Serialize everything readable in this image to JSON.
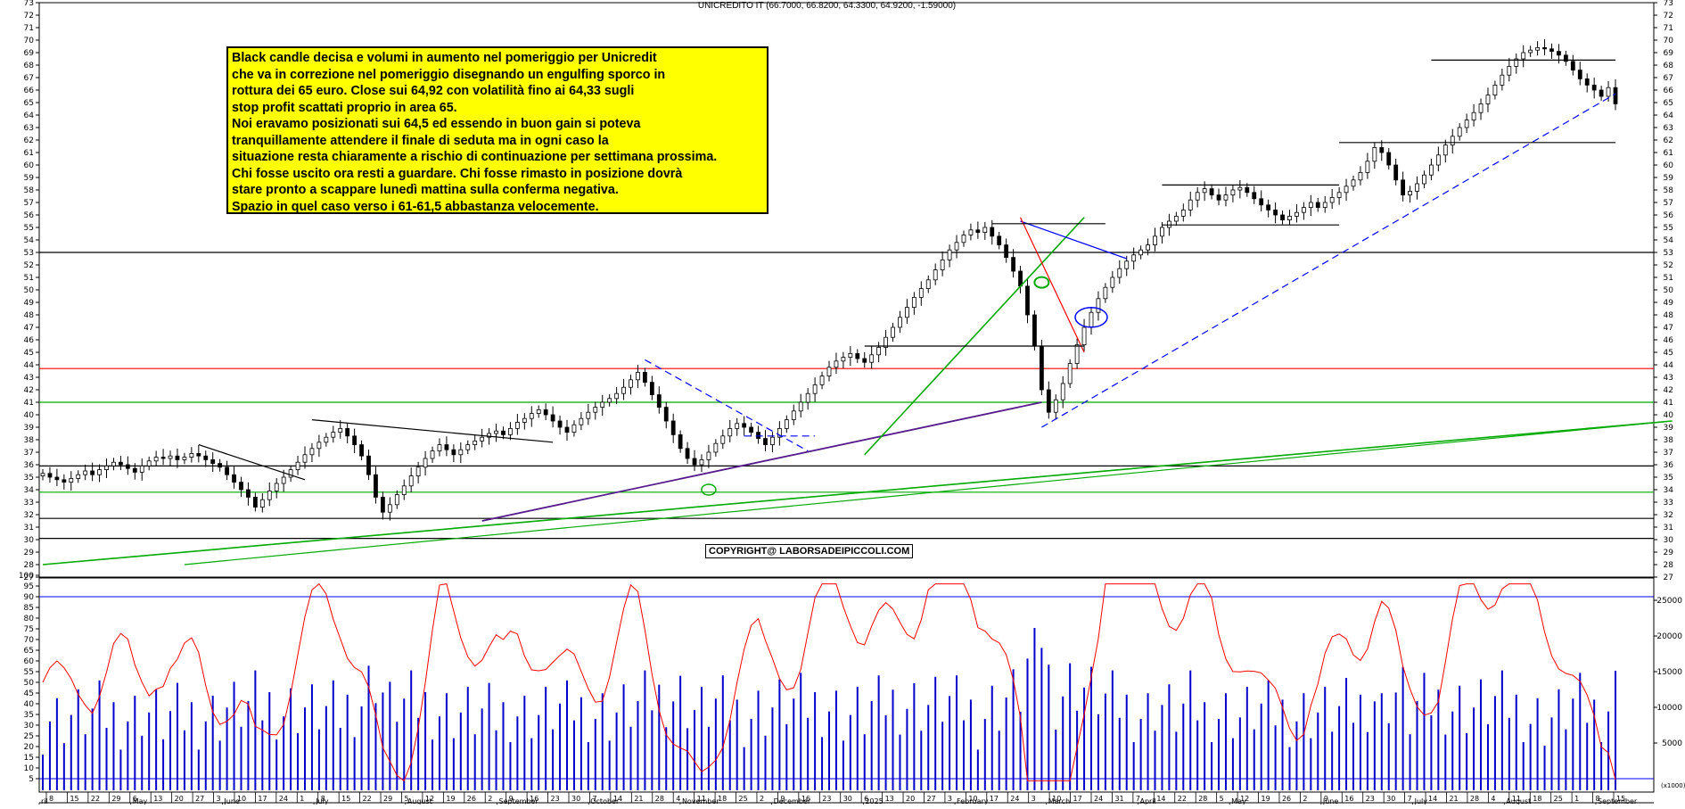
{
  "chart_data": {
    "type": "candlestick",
    "title": "UNICREDITO IT (66.7000, 66.8200, 64.3300, 64.9200, -1.59000)",
    "annotation": [
      "Black candle decisa e volumi in aumento nel pomeriggio per Unicredit",
      "che va in correzione nel pomeriggio disegnando un engulfing sporco in",
      "rottura dei 65 euro. Close sui 64,92 con volatilità fino ai 64,33 sugli",
      "stop profit scattati proprio in area 65.",
      "Noi eravamo posizionati sui 64,5 ed essendo in buon gain si poteva",
      "tranquillamente attendere il finale di seduta ma in ogni caso la",
      "situazione resta chiaramente a rischio di continuazione per settimana prossima.",
      "Chi fosse uscito ora resti a guardare. Chi fosse rimasto in posizione dovrà",
      "stare pronto a scappare lunedì mattina sulla conferma negativa.",
      "Spazio in quel caso verso i 61-61,5 abbastanza velocemente."
    ],
    "copyright": "COPYRIGHT@ LABORSADEIPICCOLI.COM",
    "price_axis": {
      "ylim": [
        27,
        73
      ],
      "ticks": [
        27,
        28,
        29,
        30,
        31,
        32,
        33,
        34,
        35,
        36,
        37,
        38,
        39,
        40,
        41,
        42,
        43,
        44,
        45,
        46,
        47,
        48,
        49,
        50,
        51,
        52,
        53,
        54,
        55,
        56,
        57,
        58,
        59,
        60,
        61,
        62,
        63,
        64,
        65,
        66,
        67,
        68,
        69,
        70,
        71,
        72,
        73
      ]
    },
    "oscillator_axis": {
      "ylim": [
        0,
        100
      ],
      "ticks": [
        5,
        10,
        15,
        20,
        25,
        30,
        35,
        40,
        45,
        50,
        55,
        60,
        65,
        70,
        75,
        80,
        85,
        90,
        95,
        100
      ]
    },
    "volume_axis": {
      "ticks": [
        5000,
        10000,
        15000,
        20000,
        25000
      ],
      "unit": "x1000"
    },
    "x_axis": {
      "day_ticks": [
        "8",
        "15",
        "22",
        "29",
        "6",
        "13",
        "20",
        "27",
        "3",
        "10",
        "17",
        "24",
        "1",
        "8",
        "15",
        "22",
        "29",
        "5",
        "12",
        "19",
        "26",
        "2",
        "9",
        "16",
        "23",
        "30",
        "7",
        "14",
        "21",
        "28",
        "4",
        "11",
        "18",
        "25",
        "2",
        "9",
        "16",
        "23",
        "30",
        "6",
        "13",
        "20",
        "27",
        "3",
        "10",
        "17",
        "24",
        "3",
        "10",
        "17",
        "24",
        "31",
        "7",
        "14",
        "22",
        "28",
        "5",
        "12",
        "19",
        "26",
        "2",
        "9",
        "16",
        "23",
        "30",
        "7",
        "14",
        "21",
        "28",
        "4",
        "11",
        "18",
        "25",
        "1",
        "8",
        "15"
      ],
      "months": [
        "ril",
        "May",
        "June",
        "July",
        "August",
        "September",
        "October",
        "November",
        "December",
        "2025",
        "February",
        "March",
        "April",
        "May",
        "June",
        "July",
        "August",
        "September"
      ]
    },
    "horizontal_levels": [
      {
        "value": 43.7,
        "color": "#ff0000"
      },
      {
        "value": 41.0,
        "color": "#00aa00"
      },
      {
        "value": 33.8,
        "color": "#00aa00"
      },
      {
        "value": 35.9,
        "color": "#000000"
      },
      {
        "value": 31.7,
        "color": "#000000"
      },
      {
        "value": 30.1,
        "color": "#000000"
      },
      {
        "value": 53.0,
        "color": "#000000"
      }
    ],
    "oscillator_levels": [
      90,
      5
    ],
    "closes": [
      35.3,
      35.0,
      34.8,
      34.6,
      34.9,
      35.2,
      35.5,
      35.2,
      35.6,
      35.9,
      36.2,
      36.0,
      35.7,
      35.4,
      35.9,
      36.3,
      36.6,
      36.5,
      36.7,
      36.4,
      36.6,
      36.9,
      36.7,
      36.4,
      36.1,
      35.8,
      35.2,
      34.6,
      34.0,
      33.4,
      32.6,
      33.2,
      33.9,
      34.5,
      35.0,
      35.6,
      36.2,
      36.8,
      37.3,
      37.8,
      38.2,
      38.6,
      38.9,
      38.3,
      37.6,
      36.7,
      35.2,
      33.4,
      32.2,
      32.8,
      33.6,
      34.3,
      35.1,
      35.8,
      36.5,
      37.1,
      37.6,
      37.2,
      36.8,
      37.2,
      37.6,
      37.9,
      38.2,
      38.5,
      38.7,
      38.4,
      38.9,
      39.4,
      39.7,
      40.1,
      40.4,
      40.0,
      39.5,
      39.0,
      38.6,
      39.2,
      39.7,
      40.2,
      40.6,
      41.0,
      41.3,
      41.7,
      42.2,
      42.8,
      43.4,
      42.6,
      41.6,
      40.6,
      39.5,
      38.4,
      37.3,
      36.5,
      36.0,
      36.4,
      37.0,
      37.7,
      38.3,
      38.9,
      39.3,
      39.0,
      38.6,
      38.1,
      37.6,
      38.2,
      38.9,
      39.6,
      40.3,
      41.0,
      41.7,
      42.4,
      43.1,
      43.8,
      44.3,
      44.6,
      44.9,
      44.5,
      44.2,
      44.8,
      45.4,
      46.2,
      47.0,
      47.8,
      48.6,
      49.4,
      50.1,
      50.8,
      51.6,
      52.4,
      53.2,
      53.8,
      54.4,
      54.8,
      54.6,
      55.0,
      54.3,
      53.6,
      52.6,
      51.5,
      50.3,
      48.0,
      45.5,
      42.0,
      40.2,
      41.2,
      42.5,
      44.1,
      45.6,
      47.0,
      48.2,
      49.3,
      50.2,
      51.0,
      51.7,
      52.3,
      52.8,
      53.2,
      53.6,
      54.3,
      55.0,
      55.5,
      55.9,
      56.4,
      57.2,
      57.8,
      58.1,
      57.6,
      57.2,
      57.6,
      58.0,
      58.2,
      57.8,
      57.3,
      56.8,
      56.4,
      56.0,
      55.6,
      55.9,
      56.2,
      56.6,
      57.0,
      56.6,
      57.0,
      57.4,
      57.8,
      58.3,
      58.8,
      59.4,
      60.3,
      61.4,
      61.0,
      60.0,
      58.8,
      57.6,
      57.9,
      58.5,
      59.2,
      60.0,
      60.8,
      61.6,
      62.3,
      63.0,
      63.6,
      64.2,
      64.9,
      65.6,
      66.4,
      67.2,
      67.9,
      68.5,
      69.0,
      69.2,
      69.4,
      69.3,
      69.1,
      68.8,
      68.3,
      67.6,
      66.9,
      66.4,
      66.0,
      65.5,
      66.2,
      64.9
    ]
  }
}
